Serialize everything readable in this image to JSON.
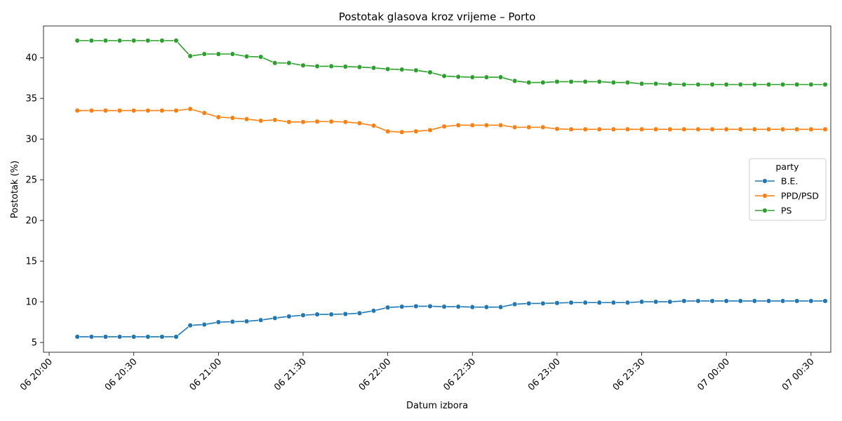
{
  "chart_data": {
    "type": "line",
    "title": "Postotak glasova kroz vrijeme – Porto",
    "xlabel": "Datum izbora",
    "ylabel": "Postotak (%)",
    "x_ticks": [
      "06 20:00",
      "06 20:30",
      "06 21:00",
      "06 21:30",
      "06 22:00",
      "06 22:30",
      "06 23:00",
      "06 23:30",
      "07 00:00",
      "07 00:30"
    ],
    "x_tick_times": [
      "2000-01-06T20:00",
      "2000-01-06T20:30",
      "2000-01-06T21:00",
      "2000-01-06T21:30",
      "2000-01-06T22:00",
      "2000-01-06T22:30",
      "2000-01-06T23:00",
      "2000-01-06T23:30",
      "2000-01-07T00:00",
      "2000-01-07T00:30"
    ],
    "y_ticks": [
      5,
      10,
      15,
      20,
      25,
      30,
      35,
      40
    ],
    "ylim": [
      3.8,
      43.9
    ],
    "xlim": [
      "2000-01-06T19:58",
      "2000-01-07T00:37"
    ],
    "grid": false,
    "legend": {
      "title": "party",
      "placement": "center-right"
    },
    "x": [
      "2000-01-06T20:10",
      "2000-01-06T20:15",
      "2000-01-06T20:20",
      "2000-01-06T20:25",
      "2000-01-06T20:30",
      "2000-01-06T20:35",
      "2000-01-06T20:40",
      "2000-01-06T20:45",
      "2000-01-06T20:50",
      "2000-01-06T20:55",
      "2000-01-06T21:00",
      "2000-01-06T21:05",
      "2000-01-06T21:10",
      "2000-01-06T21:15",
      "2000-01-06T21:20",
      "2000-01-06T21:25",
      "2000-01-06T21:30",
      "2000-01-06T21:35",
      "2000-01-06T21:40",
      "2000-01-06T21:45",
      "2000-01-06T21:50",
      "2000-01-06T21:55",
      "2000-01-06T22:00",
      "2000-01-06T22:05",
      "2000-01-06T22:10",
      "2000-01-06T22:15",
      "2000-01-06T22:20",
      "2000-01-06T22:25",
      "2000-01-06T22:30",
      "2000-01-06T22:35",
      "2000-01-06T22:40",
      "2000-01-06T22:45",
      "2000-01-06T22:50",
      "2000-01-06T22:55",
      "2000-01-06T23:00",
      "2000-01-06T23:05",
      "2000-01-06T23:10",
      "2000-01-06T23:15",
      "2000-01-06T23:20",
      "2000-01-06T23:25",
      "2000-01-06T23:30",
      "2000-01-06T23:35",
      "2000-01-06T23:40",
      "2000-01-06T23:45",
      "2000-01-06T23:50",
      "2000-01-06T23:55",
      "2000-01-07T00:00",
      "2000-01-07T00:05",
      "2000-01-07T00:10",
      "2000-01-07T00:15",
      "2000-01-07T00:20",
      "2000-01-07T00:25",
      "2000-01-07T00:30",
      "2000-01-07T00:35"
    ],
    "series": [
      {
        "name": "B.E.",
        "color": "#1f77b4",
        "values": [
          5.7,
          5.7,
          5.7,
          5.7,
          5.7,
          5.7,
          5.7,
          5.7,
          7.1,
          7.2,
          7.5,
          7.55,
          7.6,
          7.75,
          8.0,
          8.2,
          8.35,
          8.45,
          8.45,
          8.5,
          8.6,
          8.9,
          9.3,
          9.4,
          9.45,
          9.45,
          9.4,
          9.4,
          9.35,
          9.35,
          9.35,
          9.7,
          9.8,
          9.8,
          9.85,
          9.9,
          9.9,
          9.9,
          9.9,
          9.9,
          10.0,
          10.0,
          10.0,
          10.1,
          10.1,
          10.1,
          10.1,
          10.1,
          10.1,
          10.1,
          10.1,
          10.1,
          10.1,
          10.1
        ]
      },
      {
        "name": "PPD/PSD",
        "color": "#ff7f0e",
        "values": [
          33.5,
          33.5,
          33.5,
          33.5,
          33.5,
          33.5,
          33.5,
          33.5,
          33.7,
          33.2,
          32.7,
          32.6,
          32.45,
          32.25,
          32.35,
          32.1,
          32.1,
          32.15,
          32.15,
          32.1,
          31.95,
          31.65,
          30.95,
          30.85,
          30.95,
          31.1,
          31.55,
          31.7,
          31.7,
          31.7,
          31.7,
          31.45,
          31.45,
          31.45,
          31.25,
          31.2,
          31.2,
          31.2,
          31.2,
          31.2,
          31.2,
          31.2,
          31.2,
          31.2,
          31.2,
          31.2,
          31.2,
          31.2,
          31.2,
          31.2,
          31.2,
          31.2,
          31.2,
          31.2
        ]
      },
      {
        "name": "PS",
        "color": "#2ca02c",
        "values": [
          42.1,
          42.1,
          42.1,
          42.1,
          42.1,
          42.1,
          42.1,
          42.1,
          40.2,
          40.45,
          40.45,
          40.45,
          40.15,
          40.1,
          39.35,
          39.35,
          39.05,
          38.95,
          38.95,
          38.9,
          38.85,
          38.75,
          38.6,
          38.55,
          38.45,
          38.2,
          37.75,
          37.65,
          37.6,
          37.6,
          37.6,
          37.15,
          36.95,
          36.95,
          37.05,
          37.05,
          37.05,
          37.05,
          36.95,
          36.95,
          36.8,
          36.8,
          36.75,
          36.7,
          36.7,
          36.7,
          36.7,
          36.7,
          36.7,
          36.7,
          36.7,
          36.7,
          36.7,
          36.7
        ]
      }
    ]
  }
}
